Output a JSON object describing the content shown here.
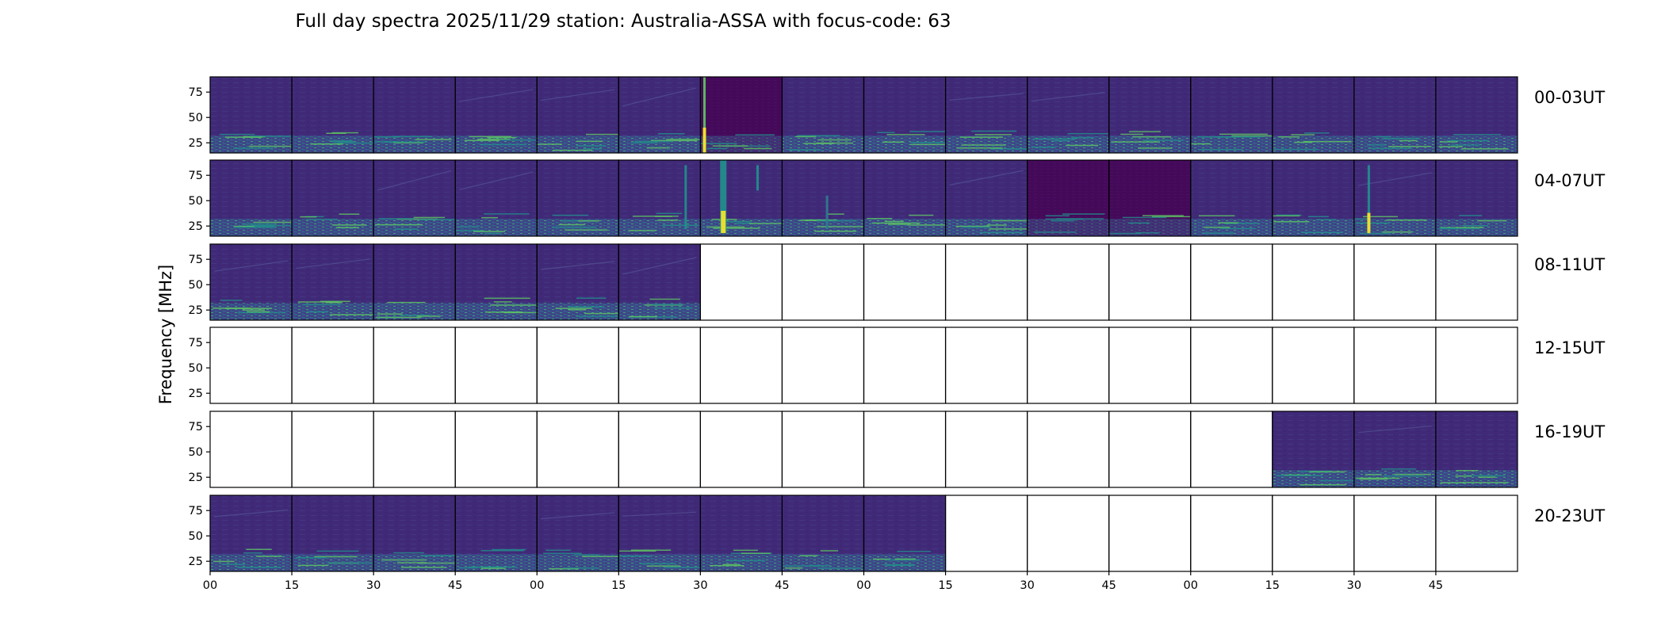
{
  "chart_data": {
    "type": "heatmap",
    "title": "Full day spectra 2025/11/29 station: Australia-ASSA with focus-code: 63",
    "ylabel": "Frequency [MHz]",
    "xlabel": "",
    "ylim": [
      15,
      90
    ],
    "y_ticks": [
      25,
      50,
      75
    ],
    "y_tick_labels": [
      "25",
      "50",
      "75"
    ],
    "x_tick_labels": [
      "00",
      "15",
      "30",
      "45",
      "00",
      "15",
      "30",
      "45",
      "00",
      "15",
      "30",
      "45",
      "00",
      "15",
      "30",
      "45"
    ],
    "panels_per_row": 16,
    "panel_minutes": 15,
    "rows": [
      {
        "label": "00-03UT",
        "filled": [
          1,
          1,
          1,
          1,
          1,
          1,
          1,
          1,
          1,
          1,
          1,
          1,
          1,
          1,
          1,
          1
        ]
      },
      {
        "label": "04-07UT",
        "filled": [
          1,
          1,
          1,
          1,
          1,
          1,
          1,
          1,
          1,
          1,
          1,
          1,
          1,
          1,
          1,
          1
        ]
      },
      {
        "label": "08-11UT",
        "filled": [
          1,
          1,
          1,
          1,
          1,
          1,
          0,
          0,
          0,
          0,
          0,
          0,
          0,
          0,
          0,
          0
        ]
      },
      {
        "label": "12-15UT",
        "filled": [
          0,
          0,
          0,
          0,
          0,
          0,
          0,
          0,
          0,
          0,
          0,
          0,
          0,
          0,
          0,
          0
        ]
      },
      {
        "label": "16-19UT",
        "filled": [
          0,
          0,
          0,
          0,
          0,
          0,
          0,
          0,
          0,
          0,
          0,
          0,
          0,
          1,
          1,
          1
        ]
      },
      {
        "label": "20-23UT",
        "filled": [
          1,
          1,
          1,
          1,
          1,
          1,
          1,
          1,
          1,
          0,
          0,
          0,
          0,
          0,
          0,
          0
        ]
      }
    ],
    "colormap": "viridis",
    "colors": {
      "background": "#3f2a78",
      "dark": "#440154",
      "band": "#3b528b",
      "mid": "#21918c",
      "bright": "#5ec962",
      "peak": "#fde725"
    }
  }
}
